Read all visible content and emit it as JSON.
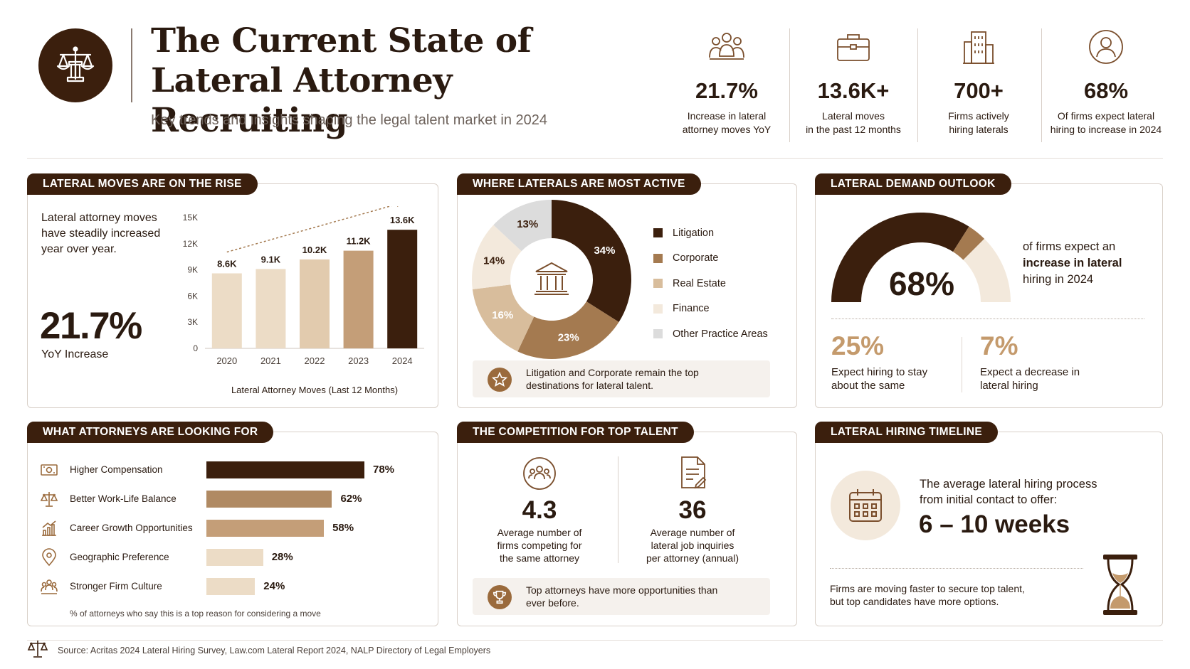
{
  "header": {
    "title": "The Current State of Lateral Attorney Recruiting",
    "title_line1": "The Current State of",
    "title_line2": "Lateral Attorney Recruiting",
    "subtitle": "Key trends and insights shaping the legal talent market in 2024",
    "logo_icon": "scales-of-justice-icon"
  },
  "stats": [
    {
      "icon": "people-group-icon",
      "value": "21.7%",
      "label": "Increase in lateral\nattorney moves YoY"
    },
    {
      "icon": "briefcase-icon",
      "value": "13.6K+",
      "label": "Lateral moves\nin the past 12 months"
    },
    {
      "icon": "building-icon",
      "value": "700+",
      "label": "Firms actively\nhiring laterals"
    },
    {
      "icon": "user-circle-icon",
      "value": "68%",
      "label": "Of firms expect lateral\nhiring to increase in 2024"
    }
  ],
  "colors": {
    "dark_brown": "#3b1f0d",
    "medium_brown": "#a47a50",
    "tan": "#d8bd9c",
    "light_tan": "#ecdcc6",
    "pale": "#f3e9dc",
    "grey": "#dcdcdc"
  },
  "lateral_moves": {
    "tab": "LATERAL MOVES ARE ON THE RISE",
    "description": "Lateral attorney moves have steadily increased year over year.",
    "big_value": "21.7%",
    "big_label": "YoY Increase"
  },
  "where_active": {
    "tab": "WHERE LATERALS ARE MOST ACTIVE",
    "center_icon": "courthouse-icon",
    "note_icon": "star-icon",
    "note": "Litigation and Corporate remain the top destinations for lateral talent."
  },
  "demand": {
    "tab": "LATERAL DEMAND OUTLOOK",
    "gauge_value": "68%",
    "gauge_fraction": 0.68,
    "text_pre": "of firms expect an",
    "text_bold": "increase in lateral",
    "text_post": "hiring in 2024",
    "same_value": "25%",
    "same_label": "Expect hiring to stay about the same",
    "decrease_value": "7%",
    "decrease_label": "Expect a decrease in lateral hiring"
  },
  "looking_for": {
    "tab": "WHAT ATTORNEYS ARE LOOKING FOR",
    "footnote": "% of attorneys who say this is a top reason for considering a move",
    "items": [
      {
        "icon": "money-icon",
        "label": "Higher Compensation",
        "value": 78,
        "value_label": "78%",
        "color": "#3b1f0d"
      },
      {
        "icon": "balance-scale-icon",
        "label": "Better Work-Life Balance",
        "value": 62,
        "value_label": "62%",
        "color": "#b08a63"
      },
      {
        "icon": "growth-chart-icon",
        "label": "Career Growth Opportunities",
        "value": 58,
        "value_label": "58%",
        "color": "#c49e78"
      },
      {
        "icon": "location-pin-icon",
        "label": "Geographic Preference",
        "value": 28,
        "value_label": "28%",
        "color": "#ecdcc6"
      },
      {
        "icon": "team-icon",
        "label": "Stronger Firm Culture",
        "value": 24,
        "value_label": "24%",
        "color": "#ecdcc6"
      }
    ]
  },
  "competition": {
    "tab": "THE COMPETITION FOR TOP TALENT",
    "left_icon": "group-circle-icon",
    "left_value": "4.3",
    "left_label": "Average number of\nfirms competing for\nthe same attorney",
    "right_icon": "document-icon",
    "right_value": "36",
    "right_label": "Average number of\nlateral job inquiries\nper attorney (annual)",
    "note_icon": "trophy-icon",
    "note": "Top attorneys have more opportunities than ever before."
  },
  "timeline": {
    "tab": "LATERAL HIRING TIMELINE",
    "icon": "calendar-icon",
    "text": "The average lateral hiring process from initial contact to offer:",
    "value": "6 – 10 weeks",
    "note": "Firms are moving faster to secure top talent, but top candidates have more options.",
    "hourglass_icon": "hourglass-icon"
  },
  "footer": {
    "icon": "scales-icon",
    "source": "Source: Acritas 2024 Lateral Hiring Survey, Law.com Lateral Report 2024, NALP Directory of Legal Employers"
  },
  "chart_data": [
    {
      "type": "bar",
      "categories": [
        "2020",
        "2021",
        "2022",
        "2023",
        "2024"
      ],
      "values": [
        8.6,
        9.1,
        10.2,
        11.2,
        13.6
      ],
      "value_labels": [
        "8.6K",
        "9.1K",
        "10.2K",
        "11.2K",
        "13.6K"
      ],
      "colors": [
        "#ecdcc6",
        "#ecdcc6",
        "#e2cbae",
        "#c49e78",
        "#3b1f0d"
      ],
      "title": "",
      "xlabel": "Lateral Attorney Moves (Last 12 Months)",
      "ylabel": "",
      "yticks": [
        "0",
        "3K",
        "6K",
        "9K",
        "12K",
        "15K"
      ],
      "ylim": [
        0,
        15
      ],
      "trend_arrow": true
    },
    {
      "type": "pie",
      "donut": true,
      "categories": [
        "Litigation",
        "Corporate",
        "Real Estate",
        "Finance",
        "Other Practice Areas"
      ],
      "values": [
        34,
        23,
        16,
        14,
        13
      ],
      "value_labels": [
        "34%",
        "23%",
        "16%",
        "14%",
        "13%"
      ],
      "colors": [
        "#3b1f0d",
        "#a47a50",
        "#d8bd9c",
        "#f3e9dc",
        "#dcdcdc"
      ],
      "label_colors": [
        "#ffffff",
        "#ffffff",
        "#ffffff",
        "#3b1f0d",
        "#3b1f0d"
      ],
      "legend_position": "right"
    }
  ]
}
